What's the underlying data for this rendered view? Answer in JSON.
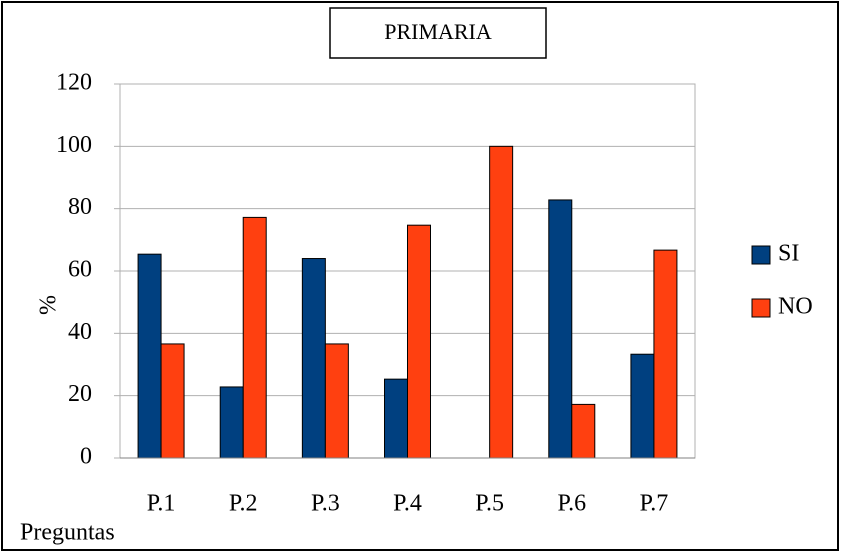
{
  "chart_data": {
    "type": "bar",
    "title": "PRIMARIA",
    "x_label": "Preguntas",
    "y_label": "%",
    "categories": [
      "P.1",
      "P.2",
      "P.3",
      "P.4",
      "P.5",
      "P.6",
      "P.7"
    ],
    "series": [
      {
        "name": "SI",
        "color": "#004080",
        "values": [
          65.4,
          22.8,
          64,
          25.3,
          0,
          82.8,
          33.3
        ]
      },
      {
        "name": "NO",
        "color": "#ff4010",
        "values": [
          36.6,
          77.2,
          36.6,
          74.7,
          100,
          17.2,
          66.7
        ]
      }
    ],
    "ylim": [
      0,
      120
    ],
    "yticks": [
      0,
      20,
      40,
      60,
      80,
      100,
      120
    ],
    "grid": true,
    "legend": "right"
  }
}
